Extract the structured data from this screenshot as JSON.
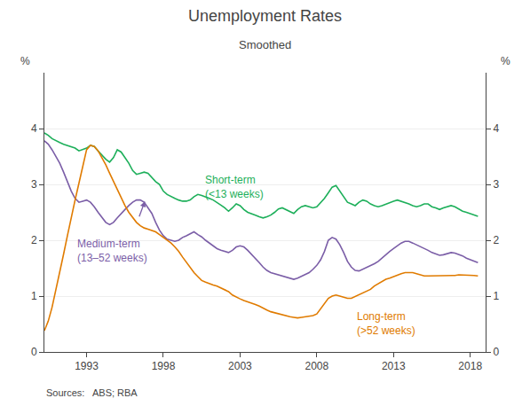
{
  "chart_data": {
    "type": "line",
    "title": "Unemployment Rates",
    "subtitle": "Smoothed",
    "ylabel": "%",
    "y2label": "%",
    "source": "Sources:   ABS; RBA",
    "grid": true,
    "xlim": [
      1990.25,
      2019.0
    ],
    "xticks": [
      1993,
      1998,
      2003,
      2008,
      2013,
      2018
    ],
    "ylim": [
      0,
      5
    ],
    "yticks": [
      0,
      1,
      2,
      3,
      4
    ],
    "y2lim": [
      0,
      5
    ],
    "y2ticks": [
      0,
      1,
      2,
      3,
      4
    ],
    "x": [
      1990.25,
      1990.5,
      1990.75,
      1991.0,
      1991.25,
      1991.5,
      1991.75,
      1992.0,
      1992.25,
      1992.5,
      1992.75,
      1993.0,
      1993.25,
      1993.5,
      1993.75,
      1994.0,
      1994.25,
      1994.5,
      1994.75,
      1995.0,
      1995.25,
      1995.5,
      1995.75,
      1996.0,
      1996.25,
      1996.5,
      1996.75,
      1997.0,
      1997.25,
      1997.5,
      1997.75,
      1998.0,
      1998.25,
      1998.5,
      1998.75,
      1999.0,
      1999.25,
      1999.5,
      1999.75,
      2000.0,
      2000.25,
      2000.5,
      2000.75,
      2001.0,
      2001.25,
      2001.5,
      2001.75,
      2002.0,
      2002.25,
      2002.5,
      2002.75,
      2003.0,
      2003.25,
      2003.5,
      2003.75,
      2004.0,
      2004.25,
      2004.5,
      2004.75,
      2005.0,
      2005.25,
      2005.5,
      2005.75,
      2006.0,
      2006.25,
      2006.5,
      2006.75,
      2007.0,
      2007.25,
      2007.5,
      2007.75,
      2008.0,
      2008.25,
      2008.5,
      2008.75,
      2009.0,
      2009.25,
      2009.5,
      2009.75,
      2010.0,
      2010.25,
      2010.5,
      2010.75,
      2011.0,
      2011.25,
      2011.5,
      2011.75,
      2012.0,
      2012.25,
      2012.5,
      2012.75,
      2013.0,
      2013.25,
      2013.5,
      2013.75,
      2014.0,
      2014.25,
      2014.5,
      2014.75,
      2015.0,
      2015.25,
      2015.5,
      2015.75,
      2016.0,
      2016.25,
      2016.5,
      2016.75,
      2017.0,
      2017.25,
      2017.5,
      2017.75,
      2018.0,
      2018.25,
      2018.5
    ],
    "series": [
      {
        "color": "#1DAF5A",
        "values": [
          3.92,
          3.88,
          3.82,
          3.78,
          3.75,
          3.72,
          3.7,
          3.68,
          3.65,
          3.6,
          3.62,
          3.65,
          3.7,
          3.68,
          3.6,
          3.52,
          3.45,
          3.4,
          3.48,
          3.62,
          3.58,
          3.48,
          3.38,
          3.25,
          3.18,
          3.2,
          3.22,
          3.2,
          3.12,
          3.05,
          3.0,
          2.88,
          2.82,
          2.78,
          2.75,
          2.72,
          2.7,
          2.7,
          2.72,
          2.78,
          2.82,
          2.8,
          2.78,
          2.75,
          2.72,
          2.68,
          2.63,
          2.58,
          2.52,
          2.58,
          2.65,
          2.62,
          2.55,
          2.5,
          2.48,
          2.45,
          2.42,
          2.4,
          2.42,
          2.45,
          2.5,
          2.56,
          2.58,
          2.55,
          2.52,
          2.48,
          2.55,
          2.6,
          2.62,
          2.6,
          2.58,
          2.6,
          2.68,
          2.75,
          2.85,
          2.95,
          2.98,
          2.88,
          2.78,
          2.68,
          2.65,
          2.62,
          2.68,
          2.72,
          2.7,
          2.65,
          2.62,
          2.6,
          2.62,
          2.65,
          2.68,
          2.7,
          2.72,
          2.7,
          2.68,
          2.65,
          2.62,
          2.6,
          2.62,
          2.65,
          2.65,
          2.6,
          2.58,
          2.55,
          2.58,
          2.6,
          2.62,
          2.6,
          2.56,
          2.52,
          2.5,
          2.48,
          2.45,
          2.43
        ]
      },
      {
        "color": "#7B5EA7",
        "values": [
          3.78,
          3.72,
          3.62,
          3.5,
          3.38,
          3.22,
          3.05,
          2.88,
          2.75,
          2.68,
          2.7,
          2.72,
          2.68,
          2.6,
          2.5,
          2.4,
          2.32,
          2.28,
          2.32,
          2.4,
          2.48,
          2.55,
          2.62,
          2.68,
          2.72,
          2.72,
          2.68,
          2.58,
          2.48,
          2.32,
          2.18,
          2.08,
          2.02,
          2.0,
          1.98,
          2.0,
          2.05,
          2.08,
          2.12,
          2.15,
          2.1,
          2.06,
          2.0,
          1.95,
          1.9,
          1.85,
          1.82,
          1.8,
          1.78,
          1.82,
          1.88,
          1.9,
          1.88,
          1.82,
          1.75,
          1.68,
          1.6,
          1.52,
          1.46,
          1.42,
          1.4,
          1.38,
          1.36,
          1.34,
          1.32,
          1.3,
          1.32,
          1.35,
          1.38,
          1.42,
          1.48,
          1.55,
          1.65,
          1.8,
          2.0,
          2.05,
          2.02,
          1.92,
          1.78,
          1.62,
          1.52,
          1.46,
          1.45,
          1.48,
          1.52,
          1.55,
          1.58,
          1.62,
          1.68,
          1.75,
          1.8,
          1.85,
          1.9,
          1.95,
          1.98,
          1.98,
          1.95,
          1.92,
          1.88,
          1.85,
          1.82,
          1.78,
          1.75,
          1.73,
          1.74,
          1.76,
          1.78,
          1.77,
          1.75,
          1.72,
          1.68,
          1.65,
          1.62,
          1.6
        ]
      },
      {
        "color": "#E07B00",
        "values": [
          0.38,
          0.55,
          0.8,
          1.1,
          1.42,
          1.75,
          2.08,
          2.42,
          2.72,
          3.02,
          3.32,
          3.62,
          3.7,
          3.68,
          3.6,
          3.48,
          3.35,
          3.2,
          3.05,
          2.9,
          2.76,
          2.62,
          2.5,
          2.4,
          2.32,
          2.26,
          2.22,
          2.2,
          2.18,
          2.15,
          2.1,
          2.05,
          2.0,
          1.95,
          1.88,
          1.8,
          1.7,
          1.6,
          1.5,
          1.42,
          1.35,
          1.28,
          1.25,
          1.22,
          1.2,
          1.18,
          1.15,
          1.12,
          1.08,
          1.02,
          0.98,
          0.95,
          0.92,
          0.9,
          0.88,
          0.85,
          0.82,
          0.78,
          0.75,
          0.72,
          0.7,
          0.68,
          0.66,
          0.65,
          0.63,
          0.62,
          0.61,
          0.62,
          0.63,
          0.64,
          0.65,
          0.68,
          0.78,
          0.88,
          0.96,
          1.0,
          1.02,
          1.0,
          0.98,
          0.96,
          0.96,
          0.99,
          1.02,
          1.05,
          1.08,
          1.12,
          1.18,
          1.22,
          1.26,
          1.3,
          1.32,
          1.35,
          1.38,
          1.4,
          1.42,
          1.42,
          1.42,
          1.4,
          1.38,
          1.36,
          1.36,
          1.36,
          1.36,
          1.36,
          1.36,
          1.36,
          1.36,
          1.37,
          1.38,
          1.38,
          1.38,
          1.38,
          1.37,
          1.36
        ]
      }
    ],
    "annotations": [
      {
        "text": "Short-term\n(<13 weeks)",
        "x": 2000.6,
        "y": 3.22,
        "color": "#1DAF5A"
      },
      {
        "text": "Medium-term\n(13–52 weeks)",
        "x": 1992.3,
        "y": 2.08,
        "color": "#7B5EA7",
        "arrow": {
          "from": [
            1996.4,
            2.4
          ],
          "to": [
            1996.8,
            2.7
          ]
        }
      },
      {
        "text": "Long-term\n(>52 weeks)",
        "x": 2010.5,
        "y": 0.78,
        "color": "#E07B00"
      }
    ]
  }
}
